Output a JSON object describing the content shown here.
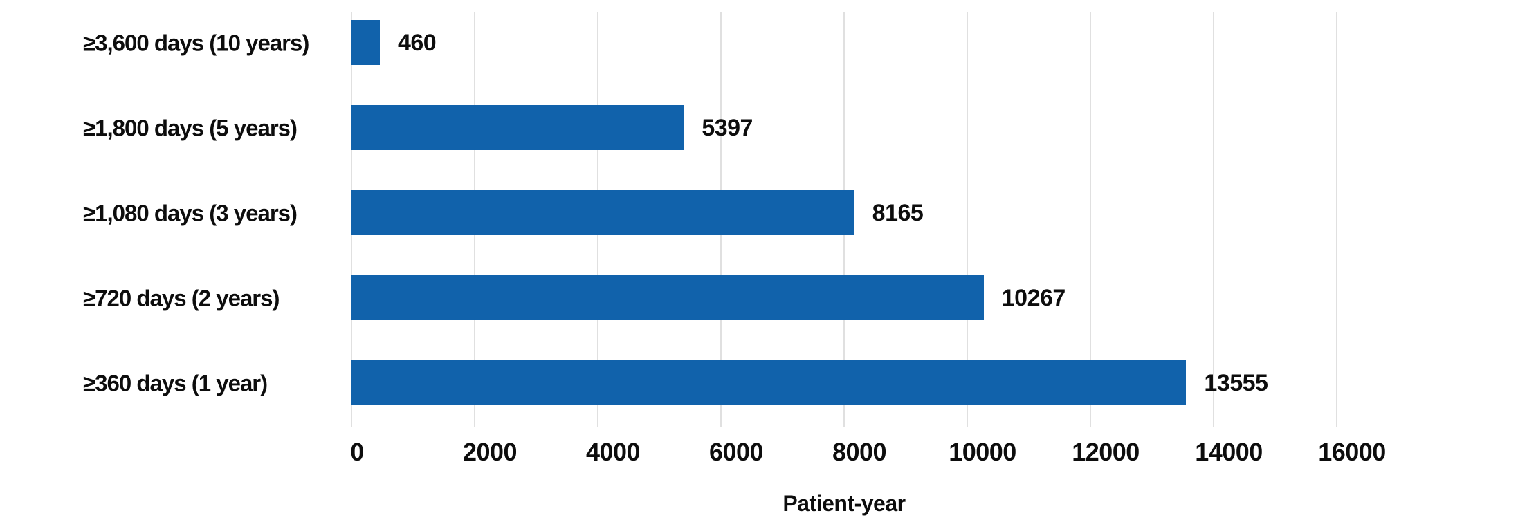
{
  "chart_data": {
    "type": "bar",
    "orientation": "horizontal",
    "title": "",
    "categories": [
      "≥3,600 days (10 years)",
      "≥1,800 days (5 years)",
      "≥1,080 days (3 years)",
      "≥720 days (2 years)",
      "≥360 days (1 year)"
    ],
    "values": [
      460,
      5397,
      8165,
      10267,
      13555
    ],
    "value_labels": [
      "460",
      "5397",
      "8165",
      "10267",
      "13555"
    ],
    "xlabel": "Patient-year",
    "ylabel": "",
    "xlim": [
      0,
      16000
    ],
    "xticks": [
      0,
      2000,
      4000,
      6000,
      8000,
      10000,
      12000,
      14000,
      16000
    ],
    "grid": true,
    "legend": "none",
    "bar_color": "#1162ab",
    "gridline_color": "#e0e0e0",
    "text_color": "#0d0d0d",
    "background_color": "#ffffff"
  }
}
